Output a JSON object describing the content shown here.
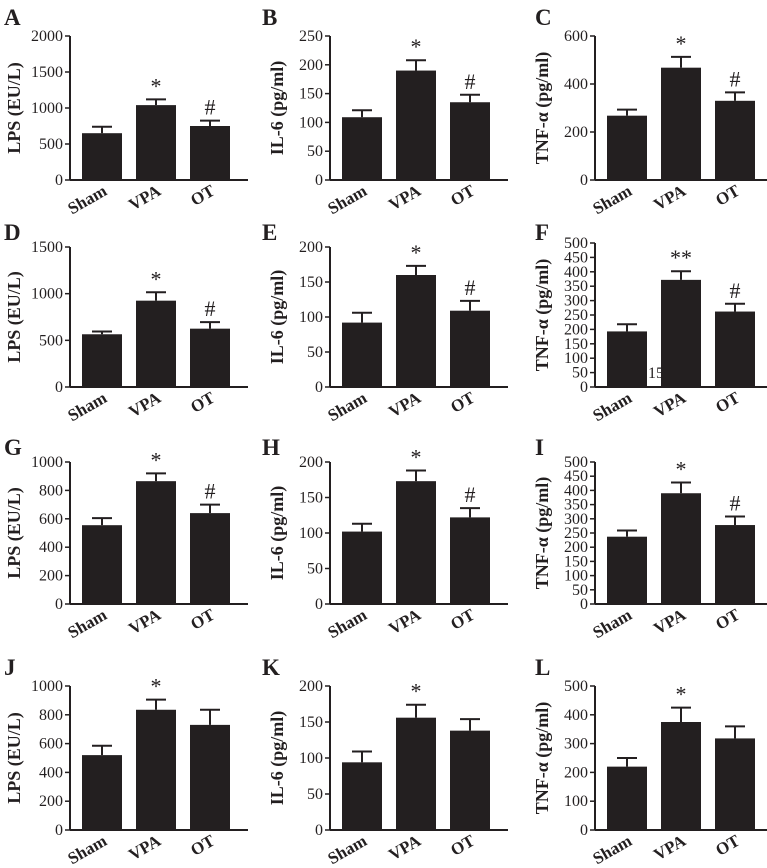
{
  "chart_data": [
    {
      "panel": "A",
      "type": "bar",
      "ylabel": "LPS (EU/L)",
      "categories": [
        "Sham",
        "VPA",
        "OT"
      ],
      "values": [
        650,
        1040,
        750
      ],
      "errors": [
        90,
        80,
        75
      ],
      "ylim": [
        0,
        2000
      ],
      "yticks": [
        "0",
        "500",
        "1000",
        "1500",
        "2000"
      ],
      "significance": [
        "",
        "*",
        "#"
      ]
    },
    {
      "panel": "B",
      "type": "bar",
      "ylabel": "IL-6 (pg/ml)",
      "categories": [
        "Sham",
        "VPA",
        "OT"
      ],
      "values": [
        109,
        190,
        135
      ],
      "errors": [
        12,
        18,
        13
      ],
      "ylim": [
        0,
        250
      ],
      "yticks": [
        "0",
        "50",
        "100",
        "150",
        "200",
        "250"
      ],
      "significance": [
        "",
        "*",
        "#"
      ]
    },
    {
      "panel": "C",
      "type": "bar",
      "ylabel": "TNF-α (pg/ml)",
      "categories": [
        "Sham",
        "VPA",
        "OT"
      ],
      "values": [
        268,
        468,
        330
      ],
      "errors": [
        25,
        45,
        35
      ],
      "ylim": [
        0,
        600
      ],
      "yticks": [
        "0",
        "200",
        "400",
        "600"
      ],
      "significance": [
        "",
        "*",
        "#"
      ]
    },
    {
      "panel": "D",
      "type": "bar",
      "ylabel": "LPS (EU/L)",
      "categories": [
        "Sham",
        "VPA",
        "OT"
      ],
      "values": [
        565,
        925,
        625
      ],
      "errors": [
        30,
        90,
        70
      ],
      "ylim": [
        0,
        1500
      ],
      "yticks": [
        "0",
        "500",
        "1000",
        "1500"
      ],
      "significance": [
        "",
        "*",
        "#"
      ]
    },
    {
      "panel": "E",
      "type": "bar",
      "ylabel": "IL-6 (pg/ml)",
      "categories": [
        "Sham",
        "VPA",
        "OT"
      ],
      "values": [
        92,
        160,
        109
      ],
      "errors": [
        14,
        13,
        14
      ],
      "ylim": [
        0,
        200
      ],
      "yticks": [
        "0",
        "50",
        "100",
        "150",
        "200"
      ],
      "significance": [
        "",
        "*",
        "#"
      ]
    },
    {
      "panel": "F",
      "type": "bar",
      "ylabel": "TNF-α (pg/ml)",
      "categories": [
        "Sham",
        "VPA",
        "OT"
      ],
      "values": [
        193,
        372,
        262
      ],
      "errors": [
        25,
        30,
        27
      ],
      "ylim": [
        0,
        500
      ],
      "yticks": [
        "0",
        "50",
        "100",
        "150",
        "200",
        "250",
        "300",
        "350",
        "400",
        "450",
        "500"
      ],
      "significance": [
        "",
        "**",
        "#"
      ]
    },
    {
      "panel": "G",
      "type": "bar",
      "ylabel": "LPS (EU/L)",
      "categories": [
        "Sham",
        "VPA",
        "OT"
      ],
      "values": [
        555,
        865,
        640
      ],
      "errors": [
        50,
        55,
        60
      ],
      "ylim": [
        0,
        1000
      ],
      "yticks": [
        "0",
        "200",
        "400",
        "600",
        "800",
        "1000"
      ],
      "significance": [
        "",
        "*",
        "#"
      ]
    },
    {
      "panel": "H",
      "type": "bar",
      "ylabel": "IL-6 (pg/ml)",
      "categories": [
        "Sham",
        "VPA",
        "OT"
      ],
      "values": [
        102,
        173,
        122
      ],
      "errors": [
        11,
        15,
        13
      ],
      "ylim": [
        0,
        200
      ],
      "yticks": [
        "0",
        "50",
        "100",
        "150",
        "200"
      ],
      "significance": [
        "",
        "*",
        "#"
      ]
    },
    {
      "panel": "I",
      "type": "bar",
      "ylabel": "TNF-α (pg/ml)",
      "categories": [
        "Sham",
        "VPA",
        "OT"
      ],
      "values": [
        237,
        390,
        278
      ],
      "errors": [
        22,
        38,
        30
      ],
      "ylim": [
        0,
        500
      ],
      "yticks": [
        "0",
        "50",
        "100",
        "150",
        "200",
        "250",
        "300",
        "350",
        "400",
        "450",
        "500"
      ],
      "significance": [
        "",
        "*",
        "#"
      ]
    },
    {
      "panel": "J",
      "type": "bar",
      "ylabel": "LPS (EU/L)",
      "categories": [
        "Sham",
        "VPA",
        "OT"
      ],
      "values": [
        520,
        835,
        730
      ],
      "errors": [
        65,
        70,
        105
      ],
      "ylim": [
        0,
        1000
      ],
      "yticks": [
        "0",
        "200",
        "400",
        "600",
        "800",
        "1000"
      ],
      "significance": [
        "",
        "*",
        ""
      ]
    },
    {
      "panel": "K",
      "type": "bar",
      "ylabel": "IL-6 (pg/ml)",
      "categories": [
        "Sham",
        "VPA",
        "OT"
      ],
      "values": [
        94,
        156,
        138
      ],
      "errors": [
        15,
        18,
        16
      ],
      "ylim": [
        0,
        200
      ],
      "yticks": [
        "0",
        "50",
        "100",
        "150",
        "200"
      ],
      "significance": [
        "",
        "*",
        ""
      ]
    },
    {
      "panel": "L",
      "type": "bar",
      "ylabel": "TNF-α (pg/ml)",
      "categories": [
        "Sham",
        "VPA",
        "OT"
      ],
      "values": [
        220,
        375,
        318
      ],
      "errors": [
        30,
        50,
        42
      ],
      "ylim": [
        0,
        500
      ],
      "yticks": [
        "0",
        "100",
        "200",
        "300",
        "400",
        "500"
      ],
      "significance": [
        "",
        "*",
        ""
      ]
    }
  ],
  "stray_text": "150",
  "colors": {
    "bar": "#231f20",
    "axis": "#231f20",
    "text": "#231f20"
  }
}
